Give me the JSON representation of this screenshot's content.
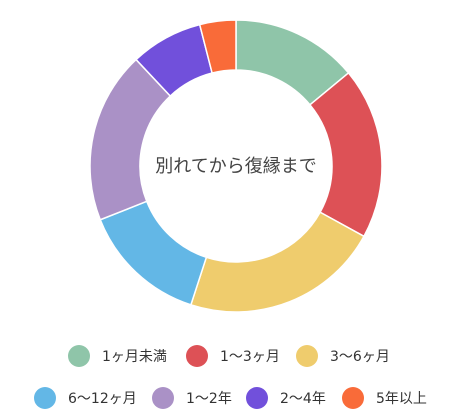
{
  "chart_data": {
    "type": "pie",
    "variant": "donut",
    "center_label": "別れてから復縁まで",
    "slices": [
      {
        "label": "1ヶ月未満",
        "value": 14,
        "color": "#8FC5A9"
      },
      {
        "label": "1〜3ヶ月",
        "value": 19,
        "color": "#DD5156"
      },
      {
        "label": "3〜6ヶ月",
        "value": 22,
        "color": "#EFCC6D"
      },
      {
        "label": "6〜12ヶ月",
        "value": 14,
        "color": "#63B7E6"
      },
      {
        "label": "1〜2年",
        "value": 19,
        "color": "#AA91C6"
      },
      {
        "label": "2〜4年",
        "value": 8,
        "color": "#7150DB"
      },
      {
        "label": "5年以上",
        "value": 4,
        "color": "#F96B39"
      }
    ],
    "legend_position": "bottom"
  }
}
